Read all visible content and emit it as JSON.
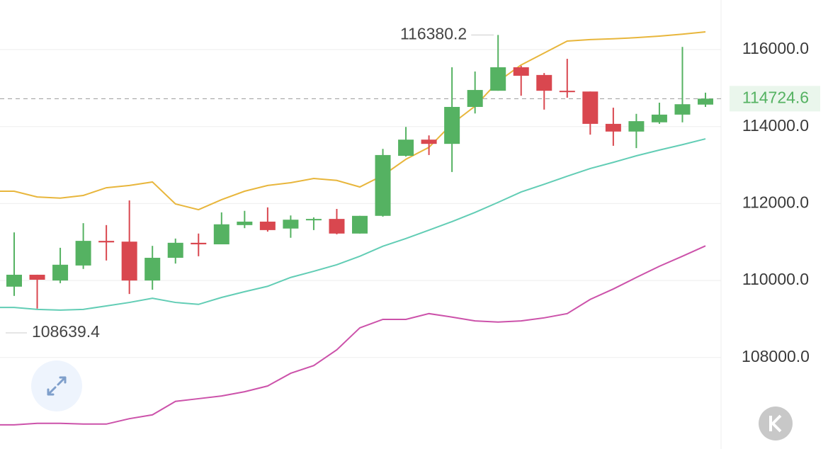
{
  "chart_data": {
    "type": "candlestick",
    "categories": [
      null,
      null,
      null,
      null,
      null,
      null,
      null,
      null,
      null,
      null,
      null,
      null,
      null,
      null,
      null,
      null,
      null,
      null,
      null,
      null,
      null,
      null,
      null,
      null,
      null,
      null,
      null,
      null,
      null,
      null,
      null
    ],
    "candles": [
      {
        "open": 109840,
        "high": 111250,
        "low": 109600,
        "close": 110150
      },
      {
        "open": 110150,
        "high": 110150,
        "low": 109270,
        "close": 110020
      },
      {
        "open": 110000,
        "high": 110850,
        "low": 109930,
        "close": 110410
      },
      {
        "open": 110390,
        "high": 111490,
        "low": 110300,
        "close": 111030
      },
      {
        "open": 111030,
        "high": 111440,
        "low": 110520,
        "close": 110990
      },
      {
        "open": 111010,
        "high": 112080,
        "low": 109650,
        "close": 110000
      },
      {
        "open": 110000,
        "high": 110900,
        "low": 109760,
        "close": 110590
      },
      {
        "open": 110590,
        "high": 111090,
        "low": 110440,
        "close": 110980
      },
      {
        "open": 110980,
        "high": 111220,
        "low": 110630,
        "close": 110940
      },
      {
        "open": 110940,
        "high": 111770,
        "low": 110940,
        "close": 111460
      },
      {
        "open": 111440,
        "high": 111810,
        "low": 111360,
        "close": 111530
      },
      {
        "open": 111530,
        "high": 111900,
        "low": 111270,
        "close": 111310
      },
      {
        "open": 111350,
        "high": 111690,
        "low": 111110,
        "close": 111580
      },
      {
        "open": 111580,
        "high": 111640,
        "low": 111310,
        "close": 111600
      },
      {
        "open": 111600,
        "high": 111860,
        "low": 111200,
        "close": 111220
      },
      {
        "open": 111220,
        "high": 111680,
        "low": 111220,
        "close": 111680
      },
      {
        "open": 111680,
        "high": 113420,
        "low": 111660,
        "close": 113260
      },
      {
        "open": 113240,
        "high": 113990,
        "low": 113220,
        "close": 113660
      },
      {
        "open": 113660,
        "high": 113770,
        "low": 113260,
        "close": 113550
      },
      {
        "open": 113550,
        "high": 115540,
        "low": 112820,
        "close": 114510
      },
      {
        "open": 114510,
        "high": 115430,
        "low": 114340,
        "close": 114950
      },
      {
        "open": 114930,
        "high": 116380.2,
        "low": 114930,
        "close": 115540
      },
      {
        "open": 115540,
        "high": 115580,
        "low": 114800,
        "close": 115320
      },
      {
        "open": 115340,
        "high": 115390,
        "low": 114440,
        "close": 114930
      },
      {
        "open": 114930,
        "high": 115760,
        "low": 114750,
        "close": 114900
      },
      {
        "open": 114910,
        "high": 114910,
        "low": 113790,
        "close": 114070
      },
      {
        "open": 114070,
        "high": 114490,
        "low": 113500,
        "close": 113870
      },
      {
        "open": 113870,
        "high": 114330,
        "low": 113440,
        "close": 114140
      },
      {
        "open": 114110,
        "high": 114620,
        "low": 114070,
        "close": 114310
      },
      {
        "open": 114310,
        "high": 116070,
        "low": 114110,
        "close": 114580
      },
      {
        "open": 114570,
        "high": 114880,
        "low": 114510,
        "close": 114724.6
      }
    ],
    "up_color": "#55b262",
    "down_color": "#d9474f",
    "lines": [
      {
        "color": "#e8b63c",
        "values": [
          112320,
          112170,
          112140,
          112210,
          112410,
          112470,
          112560,
          111990,
          111840,
          112100,
          112320,
          112470,
          112540,
          112650,
          112600,
          112430,
          112730,
          113150,
          113460,
          114070,
          114530,
          115170,
          115600,
          115910,
          116220,
          116260,
          116280,
          116310,
          116350,
          116400,
          116460
        ]
      },
      {
        "color": "#62cdb5",
        "values": [
          109300,
          109250,
          109230,
          109250,
          109340,
          109430,
          109540,
          109430,
          109380,
          109560,
          109710,
          109850,
          110080,
          110240,
          110410,
          110630,
          110890,
          111090,
          111310,
          111530,
          111770,
          112030,
          112300,
          112500,
          112710,
          112910,
          113070,
          113240,
          113390,
          113530,
          113680
        ]
      },
      {
        "color": "#cc52aa",
        "values": [
          106250,
          106290,
          106290,
          106270,
          106270,
          106410,
          106510,
          106860,
          106930,
          107000,
          107110,
          107260,
          107590,
          107790,
          108200,
          108770,
          108990,
          108990,
          109140,
          109050,
          108950,
          108920,
          108950,
          109030,
          109140,
          109510,
          109780,
          110080,
          110370,
          110630,
          110900
        ]
      }
    ],
    "min_label": 108639.4,
    "ylim": [
      105788,
      117288
    ],
    "yticks": [
      {
        "value": 108000,
        "label": "108000.0"
      },
      {
        "value": 110000,
        "label": "110000.0"
      },
      {
        "value": 112000,
        "label": "112000.0"
      },
      {
        "value": 114000,
        "label": "114000.0"
      },
      {
        "value": 116000,
        "label": "116000.0"
      }
    ],
    "grid": true
  }
}
